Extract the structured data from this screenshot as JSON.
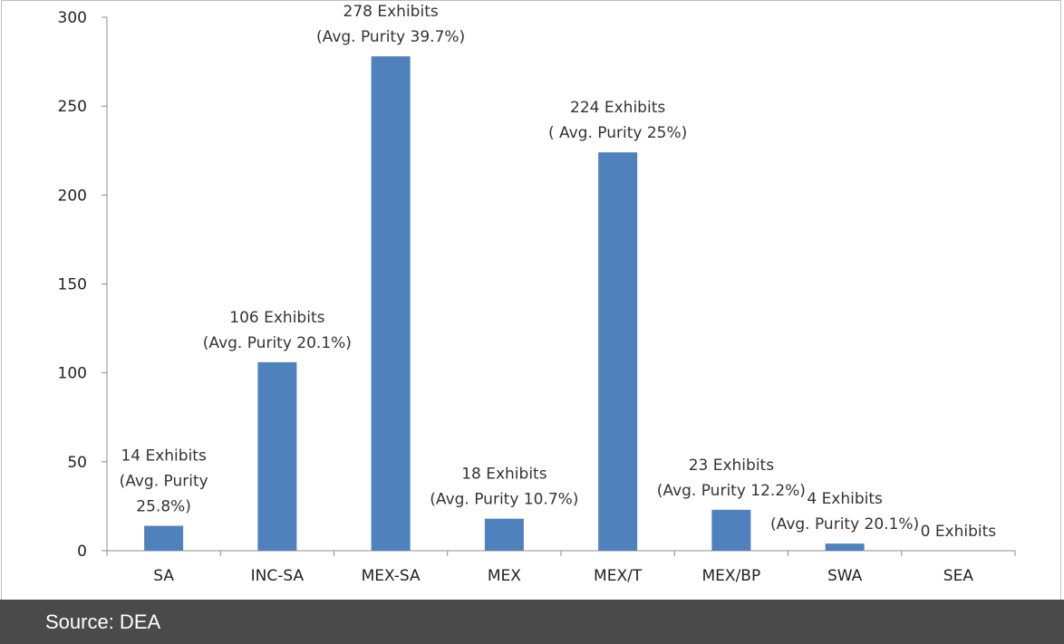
{
  "chart_data": {
    "type": "bar",
    "categories": [
      "SA",
      "INC-SA",
      "MEX-SA",
      "MEX",
      "MEX/T",
      "MEX/BP",
      "SWA",
      "SEA"
    ],
    "values": [
      14,
      106,
      278,
      18,
      224,
      23,
      4,
      0
    ],
    "annotations": [
      [
        "14 Exhibits",
        "(Avg. Purity",
        "25.8%)"
      ],
      [
        "106 Exhibits",
        "(Avg. Purity 20.1%)"
      ],
      [
        "278 Exhibits",
        "(Avg. Purity 39.7%)"
      ],
      [
        "18 Exhibits",
        "(Avg. Purity 10.7%)"
      ],
      [
        "224 Exhibits",
        "( Avg. Purity 25%)"
      ],
      [
        "23 Exhibits",
        "(Avg. Purity 12.2%)"
      ],
      [
        "4 Exhibits",
        "(Avg. Purity 20.1%)"
      ],
      [
        "0 Exhibits"
      ]
    ],
    "ylim": [
      0,
      300
    ],
    "yticks": [
      0,
      50,
      100,
      150,
      200,
      250,
      300
    ],
    "grid": false,
    "bar_color": "#4f81bd"
  },
  "footer": {
    "source": "Source: DEA"
  }
}
